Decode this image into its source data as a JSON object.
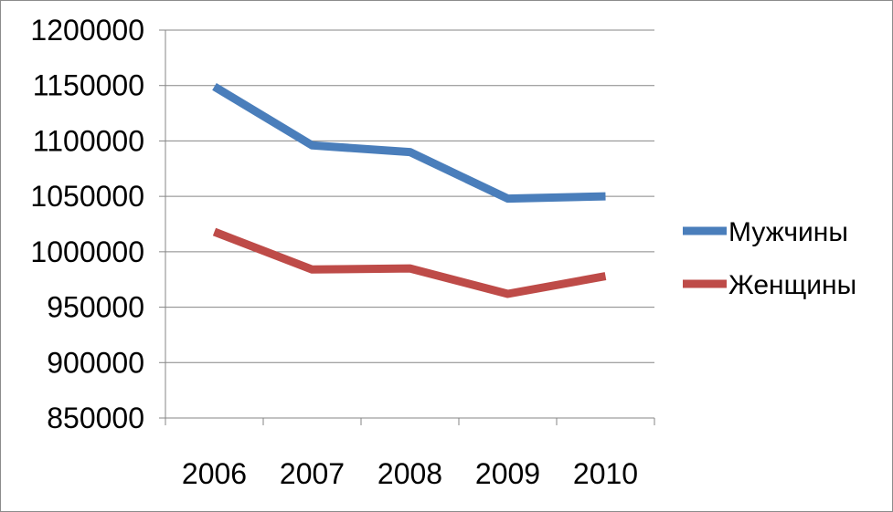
{
  "chart_data": {
    "type": "line",
    "categories": [
      "2006",
      "2007",
      "2008",
      "2009",
      "2010"
    ],
    "series": [
      {
        "name": "Мужчины",
        "color": "#4a7ebb",
        "values": [
          1149000,
          1096000,
          1090000,
          1048000,
          1050000
        ]
      },
      {
        "name": "Женщины",
        "color": "#be4b48",
        "values": [
          1018000,
          984000,
          985000,
          962000,
          978000
        ]
      }
    ],
    "ylim": [
      850000,
      1200000
    ],
    "yticks": [
      "1200000",
      "1150000",
      "1100000",
      "1050000",
      "1000000",
      "950000",
      "900000",
      "850000"
    ],
    "grid": true,
    "legend": "right"
  }
}
